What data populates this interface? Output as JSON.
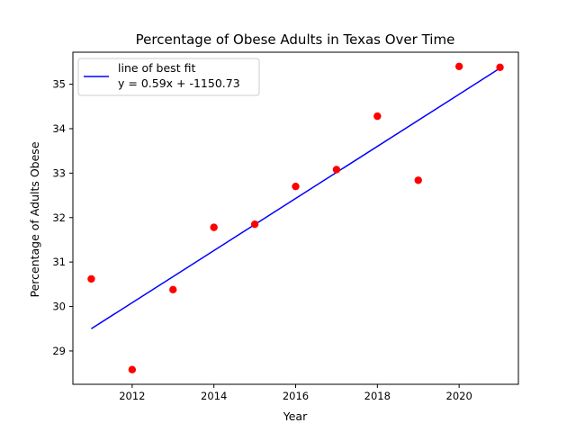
{
  "chart_data": {
    "type": "scatter",
    "title": "Percentage of Obese Adults in Texas Over Time",
    "xlabel": "Year",
    "ylabel": "Percentage of Adults Obese",
    "xlim": [
      2010.55,
      2021.45
    ],
    "ylim": [
      28.25,
      35.72
    ],
    "x_ticks": [
      2012,
      2014,
      2016,
      2018,
      2020
    ],
    "y_ticks": [
      29,
      30,
      31,
      32,
      33,
      34,
      35
    ],
    "grid": false,
    "legend_position": "top-left",
    "series": [
      {
        "kind": "line",
        "name": "line of best fit",
        "label_line2": "y = 0.59x + -1150.73",
        "color": "#0000ff",
        "x": [
          2011,
          2021
        ],
        "y": [
          29.5,
          35.36
        ]
      },
      {
        "kind": "points",
        "color": "#ff0000",
        "x": [
          2011,
          2012,
          2013,
          2014,
          2015,
          2016,
          2017,
          2018,
          2019,
          2020,
          2021
        ],
        "y": [
          30.62,
          28.58,
          30.38,
          31.78,
          31.85,
          32.7,
          33.08,
          34.28,
          32.84,
          35.4,
          35.38
        ]
      }
    ]
  }
}
